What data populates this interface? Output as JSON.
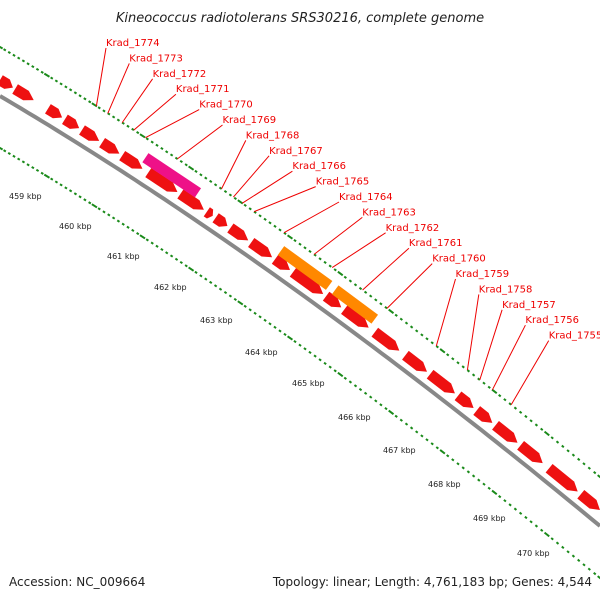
{
  "title": "Kineococcus radiotolerans SRS30216, complete genome",
  "footer": {
    "accession": "Accession: NC_009664",
    "summary": "Topology: linear; Length: 4,761,183 bp; Genes: 4,544"
  },
  "colors": {
    "gene": "#ee1111",
    "gene_highlight": "#ee1188",
    "gene_alt": "#ff8800",
    "label": "#ee0000",
    "tick": "#1a8a1a",
    "backbone": "#888888"
  },
  "gene_labels": [
    "Krad_1774",
    "Krad_1773",
    "Krad_1772",
    "Krad_1771",
    "Krad_1770",
    "Krad_1769",
    "Krad_1768",
    "Krad_1767",
    "Krad_1766",
    "Krad_1765",
    "Krad_1764",
    "Krad_1763",
    "Krad_1762",
    "Krad_1761",
    "Krad_1760",
    "Krad_1759",
    "Krad_1758",
    "Krad_1757",
    "Krad_1756",
    "Krad_1755"
  ],
  "kbp_labels": [
    "459 kbp",
    "460 kbp",
    "461 kbp",
    "462 kbp",
    "463 kbp",
    "464 kbp",
    "465 kbp",
    "466 kbp",
    "467 kbp",
    "468 kbp",
    "469 kbp",
    "470 kbp"
  ]
}
